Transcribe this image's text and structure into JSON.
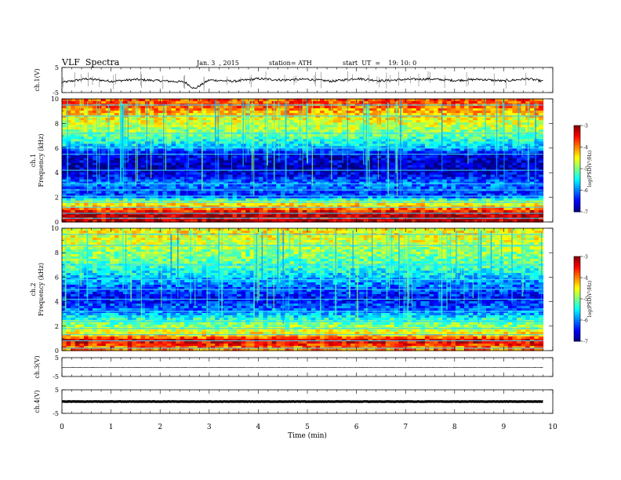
{
  "header": {
    "title": "VLF  Spectra",
    "date": "Jan. 3  , 2015",
    "station": "station= ATH",
    "start": "start  UT  =    19: 10: 0"
  },
  "chart_data": [
    {
      "type": "line",
      "panel": "ch1-waveform",
      "ylabel": "ch.1(V)",
      "ylim": [
        -5,
        5
      ],
      "yticks": [
        "5",
        "-5"
      ],
      "xlim": [
        0,
        10
      ],
      "color": "#000000",
      "x": [
        0.0,
        0.5,
        1.0,
        1.5,
        2.0,
        2.5,
        2.7,
        3.0,
        3.5,
        4.0,
        4.5,
        5.0,
        5.5,
        6.0,
        6.5,
        7.0,
        7.5,
        8.0,
        8.5,
        9.0,
        9.5,
        9.8
      ],
      "y": [
        -1.0,
        0.5,
        -0.5,
        0.2,
        -0.3,
        -0.8,
        -3.5,
        0.0,
        -0.5,
        0.5,
        0.0,
        0.3,
        -0.5,
        0.6,
        -0.3,
        0.2,
        0.4,
        -0.2,
        0.3,
        -0.4,
        0.5,
        -0.5
      ]
    },
    {
      "type": "heatmap",
      "panel": "ch1-spectrogram",
      "ylabel": "ch.1\nFrequency (kHz)",
      "yticks": [
        "0",
        "2",
        "4",
        "6",
        "8",
        "10"
      ],
      "ylim": [
        0,
        10
      ],
      "xlim": [
        0,
        10
      ],
      "colorbar": {
        "label": "log(PSD(V²/Hz)",
        "ticks": [
          "-3",
          "-4",
          "-5",
          "-6",
          "-7"
        ],
        "range": [
          -7,
          -3
        ]
      },
      "bands_khz_level": [
        [
          0.3,
          -3.3
        ],
        [
          0.7,
          -3.2
        ],
        [
          1.2,
          -4.3
        ],
        [
          1.6,
          -4.6
        ],
        [
          2.1,
          -6.3
        ],
        [
          2.6,
          -6.2
        ],
        [
          3.1,
          -6.0
        ],
        [
          4.2,
          -6.8
        ],
        [
          5.5,
          -6.6
        ],
        [
          6.0,
          -5.8
        ],
        [
          7.2,
          -5.0
        ],
        [
          8.6,
          -4.4
        ],
        [
          9.5,
          -3.8
        ]
      ]
    },
    {
      "type": "heatmap",
      "panel": "ch2-spectrogram",
      "ylabel": "ch.2\nFrequency (kHz)",
      "yticks": [
        "0",
        "2",
        "4",
        "6",
        "8",
        "10"
      ],
      "ylim": [
        0,
        10
      ],
      "xlim": [
        0,
        10
      ],
      "colorbar": {
        "label": "log(PSD(V²/Hz)",
        "ticks": [
          "-3",
          "-4",
          "-5",
          "-6",
          "-7"
        ],
        "range": [
          -7,
          -3
        ]
      },
      "bands_khz_level": [
        [
          0.2,
          -4.0
        ],
        [
          0.8,
          -3.3
        ],
        [
          1.3,
          -4.4
        ],
        [
          1.8,
          -4.8
        ],
        [
          2.4,
          -5.2
        ],
        [
          3.2,
          -6.0
        ],
        [
          4.2,
          -6.5
        ],
        [
          5.0,
          -6.2
        ],
        [
          5.8,
          -5.8
        ],
        [
          7.0,
          -5.2
        ],
        [
          8.6,
          -4.8
        ],
        [
          9.5,
          -4.5
        ]
      ]
    },
    {
      "type": "line",
      "panel": "ch3-waveform",
      "ylabel": "ch.3(V)",
      "ylim": [
        -5,
        5
      ],
      "yticks": [
        "5",
        "-5"
      ],
      "xlim": [
        0,
        10
      ],
      "color": "#000000",
      "x": [
        0.0,
        2.0,
        4.0,
        6.0,
        8.0,
        9.8
      ],
      "y": [
        -0.2,
        -0.2,
        -0.2,
        -0.2,
        -0.2,
        -0.2
      ]
    },
    {
      "type": "line",
      "panel": "ch4-waveform",
      "ylabel": "ch.4(V)",
      "ylim": [
        -5,
        5
      ],
      "yticks": [
        "5",
        "-5"
      ],
      "xlim": [
        0,
        10
      ],
      "color": "#000000",
      "x": [
        0.0,
        2.0,
        4.0,
        6.0,
        8.0,
        9.8
      ],
      "y": [
        0.0,
        0.0,
        0.0,
        0.0,
        0.0,
        0.0
      ]
    }
  ],
  "x_axis": {
    "label": "Time  (min)",
    "ticks": [
      "0",
      "1",
      "2",
      "3",
      "4",
      "5",
      "6",
      "7",
      "8",
      "9",
      "10"
    ],
    "range": [
      0,
      10
    ],
    "data_end": 9.8
  }
}
